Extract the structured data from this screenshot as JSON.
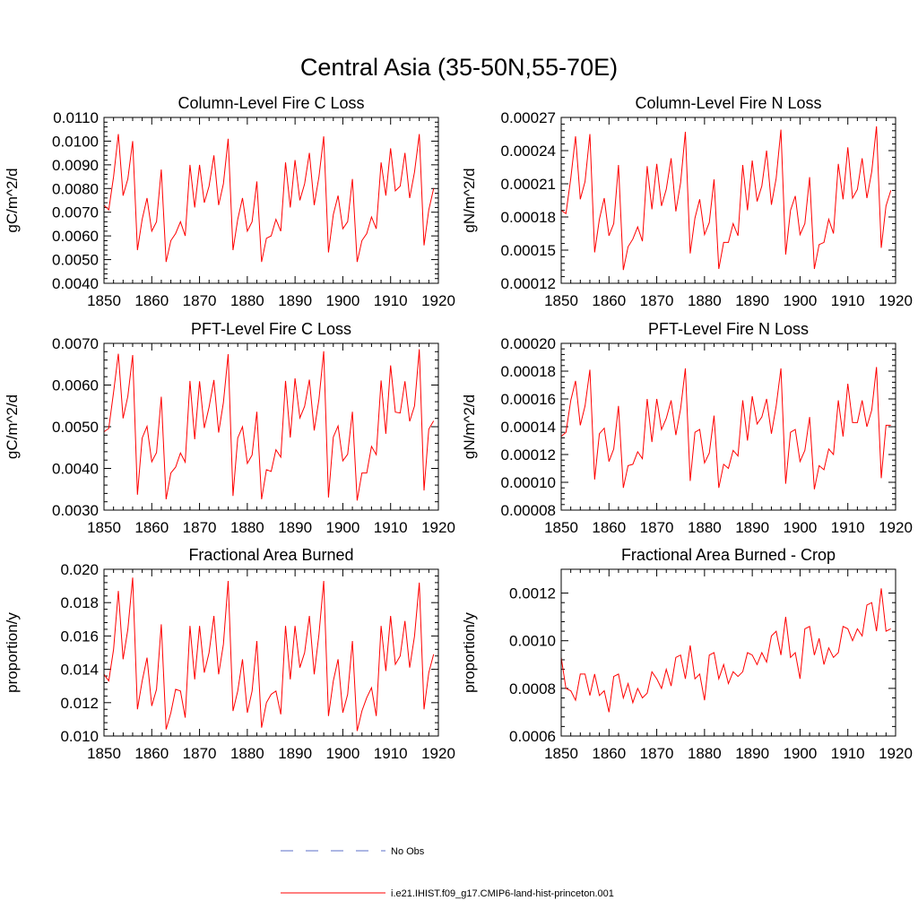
{
  "title": "Central Asia (35-50N,55-70E)",
  "chart_data": [
    {
      "type": "line",
      "title": "Column-Level Fire C Loss",
      "ylabel": "gC/m^2/d",
      "xlim": [
        1850,
        1920
      ],
      "ylim": [
        0.004,
        0.011
      ],
      "xticks": [
        "1850",
        "1860",
        "1870",
        "1880",
        "1890",
        "1900",
        "1910",
        "1920"
      ],
      "yticks": [
        "0.0040",
        "0.0050",
        "0.0060",
        "0.0070",
        "0.0080",
        "0.0090",
        "0.0100",
        "0.0110"
      ],
      "x_start": 1850,
      "series": [
        {
          "values": [
            0.0073,
            0.0071,
            0.0085,
            0.0103,
            0.0077,
            0.0084,
            0.01,
            0.0054,
            0.0067,
            0.0076,
            0.0062,
            0.0066,
            0.0088,
            0.0049,
            0.0058,
            0.0061,
            0.0066,
            0.006,
            0.009,
            0.0072,
            0.009,
            0.0074,
            0.0081,
            0.0094,
            0.0073,
            0.0082,
            0.0101,
            0.0054,
            0.0067,
            0.0076,
            0.0062,
            0.0066,
            0.0083,
            0.0049,
            0.0059,
            0.006,
            0.0067,
            0.0062,
            0.0091,
            0.0072,
            0.0092,
            0.0075,
            0.0082,
            0.0095,
            0.0073,
            0.0085,
            0.0102,
            0.0053,
            0.0069,
            0.0077,
            0.0063,
            0.0066,
            0.0084,
            0.0049,
            0.0058,
            0.0061,
            0.0068,
            0.0063,
            0.0091,
            0.0077,
            0.0097,
            0.0079,
            0.0081,
            0.0095,
            0.0076,
            0.0087,
            0.0103,
            0.0056,
            0.0071,
            0.008
          ]
        }
      ]
    },
    {
      "type": "line",
      "title": "Column-Level Fire N Loss",
      "ylabel": "gN/m^2/d",
      "xlim": [
        1850,
        1920
      ],
      "ylim": [
        0.00012,
        0.00027
      ],
      "xticks": [
        "1850",
        "1860",
        "1870",
        "1880",
        "1890",
        "1900",
        "1910",
        "1920"
      ],
      "yticks": [
        "0.00012",
        "0.00015",
        "0.00018",
        "0.00021",
        "0.00024",
        "0.00027"
      ],
      "x_start": 1850,
      "series": [
        {
          "values": [
            0.000186,
            0.000183,
            0.000215,
            0.000253,
            0.000196,
            0.000212,
            0.000255,
            0.000148,
            0.000178,
            0.000197,
            0.000163,
            0.000174,
            0.000227,
            0.000132,
            0.000153,
            0.00016,
            0.000171,
            0.000158,
            0.000226,
            0.000187,
            0.000228,
            0.00019,
            0.000205,
            0.000233,
            0.000185,
            0.000211,
            0.000257,
            0.000147,
            0.000179,
            0.000196,
            0.000164,
            0.000175,
            0.000214,
            0.000133,
            0.000157,
            0.000157,
            0.000174,
            0.000163,
            0.000227,
            0.000186,
            0.000231,
            0.000194,
            0.000208,
            0.00024,
            0.000191,
            0.000215,
            0.000259,
            0.000146,
            0.000186,
            0.000199,
            0.000164,
            0.000174,
            0.000216,
            0.000133,
            0.000155,
            0.000157,
            0.000178,
            0.000165,
            0.000228,
            0.000196,
            0.000243,
            0.000197,
            0.000205,
            0.000233,
            0.000197,
            0.000221,
            0.000262,
            0.000152,
            0.00019,
            0.000204
          ]
        }
      ]
    },
    {
      "type": "line",
      "title": "PFT-Level Fire C Loss",
      "ylabel": "gC/m^2/d",
      "xlim": [
        1850,
        1920
      ],
      "ylim": [
        0.003,
        0.007
      ],
      "xticks": [
        "1850",
        "1860",
        "1870",
        "1880",
        "1890",
        "1900",
        "1910",
        "1920"
      ],
      "yticks": [
        "0.0030",
        "0.0040",
        "0.0050",
        "0.0060",
        "0.0070"
      ],
      "x_start": 1850,
      "series": [
        {
          "values": [
            0.00488,
            0.00496,
            0.00583,
            0.00675,
            0.0052,
            0.00573,
            0.00672,
            0.00337,
            0.00473,
            0.00501,
            0.00416,
            0.00438,
            0.00572,
            0.00326,
            0.00389,
            0.00403,
            0.00437,
            0.00415,
            0.0061,
            0.0047,
            0.00609,
            0.00497,
            0.00547,
            0.00612,
            0.00486,
            0.00558,
            0.00674,
            0.00334,
            0.00473,
            0.005,
            0.00412,
            0.00432,
            0.00536,
            0.00326,
            0.00397,
            0.00393,
            0.00445,
            0.00427,
            0.0061,
            0.00474,
            0.00616,
            0.00521,
            0.00549,
            0.00613,
            0.00491,
            0.00566,
            0.00681,
            0.0033,
            0.00475,
            0.00502,
            0.00418,
            0.00434,
            0.00536,
            0.00323,
            0.00389,
            0.00389,
            0.00453,
            0.00433,
            0.00611,
            0.00483,
            0.00647,
            0.00535,
            0.00533,
            0.00609,
            0.00513,
            0.0055,
            0.00686,
            0.00347,
            0.00494,
            0.00514
          ]
        }
      ]
    },
    {
      "type": "line",
      "title": "PFT-Level Fire N Loss",
      "ylabel": "gN/m^2/d",
      "xlim": [
        1850,
        1920
      ],
      "ylim": [
        8e-05,
        0.0002
      ],
      "xticks": [
        "1850",
        "1860",
        "1870",
        "1880",
        "1890",
        "1900",
        "1910",
        "1920"
      ],
      "yticks": [
        "0.00008",
        "0.00010",
        "0.00012",
        "0.00014",
        "0.00016",
        "0.00018",
        "0.00020"
      ],
      "x_start": 1850,
      "series": [
        {
          "values": [
            0.000133,
            0.000136,
            0.000159,
            0.000173,
            0.000141,
            0.000155,
            0.000181,
            0.000102,
            0.000135,
            0.000139,
            0.000115,
            0.000124,
            0.000155,
            9.6e-05,
            0.000112,
            0.000113,
            0.000122,
            0.000117,
            0.00016,
            0.000129,
            0.00016,
            0.000138,
            0.000146,
            0.000159,
            0.000134,
            0.000153,
            0.000182,
            0.000101,
            0.000136,
            0.000138,
            0.000114,
            0.000121,
            0.000148,
            9.6e-05,
            0.000113,
            0.00011,
            0.000123,
            0.000119,
            0.000159,
            0.00013,
            0.000162,
            0.000142,
            0.000147,
            0.00016,
            0.000135,
            0.000155,
            0.000182,
            9.9e-05,
            0.000136,
            0.000138,
            0.000115,
            0.000123,
            0.000147,
            9.5e-05,
            0.000112,
            0.000109,
            0.000124,
            0.00012,
            0.000159,
            0.000133,
            0.000171,
            0.000143,
            0.000143,
            0.000159,
            0.00014,
            0.000152,
            0.000183,
            0.000103,
            0.000141,
            0.000141
          ]
        }
      ]
    },
    {
      "type": "line",
      "title": "Fractional Area Burned",
      "ylabel": "proportion/y",
      "xlim": [
        1850,
        1920
      ],
      "ylim": [
        0.01,
        0.02
      ],
      "xticks": [
        "1850",
        "1860",
        "1870",
        "1880",
        "1890",
        "1900",
        "1910",
        "1920"
      ],
      "yticks": [
        "0.010",
        "0.012",
        "0.014",
        "0.016",
        "0.018",
        "0.020"
      ],
      "x_start": 1850,
      "series": [
        {
          "values": [
            0.0137,
            0.0133,
            0.0152,
            0.0187,
            0.0146,
            0.0164,
            0.0195,
            0.0116,
            0.0133,
            0.0147,
            0.0118,
            0.0128,
            0.0167,
            0.0104,
            0.0114,
            0.0128,
            0.0127,
            0.0111,
            0.0166,
            0.0134,
            0.0166,
            0.0138,
            0.015,
            0.0172,
            0.0137,
            0.0155,
            0.0193,
            0.0115,
            0.0127,
            0.0146,
            0.0114,
            0.0127,
            0.0157,
            0.0105,
            0.012,
            0.0125,
            0.0127,
            0.0113,
            0.0166,
            0.0134,
            0.0166,
            0.0141,
            0.015,
            0.0172,
            0.0137,
            0.0161,
            0.0193,
            0.0112,
            0.0133,
            0.0146,
            0.0114,
            0.0125,
            0.0157,
            0.0103,
            0.0115,
            0.0123,
            0.0129,
            0.0112,
            0.0166,
            0.0139,
            0.0172,
            0.0143,
            0.0148,
            0.0169,
            0.0141,
            0.016,
            0.0192,
            0.0116,
            0.0138,
            0.0149
          ]
        }
      ]
    },
    {
      "type": "line",
      "title": "Fractional Area Burned - Crop",
      "ylabel": "proportion/y",
      "xlim": [
        1850,
        1920
      ],
      "ylim": [
        0.0006,
        0.0013
      ],
      "xticks": [
        "1850",
        "1860",
        "1870",
        "1880",
        "1890",
        "1900",
        "1910",
        "1920"
      ],
      "yticks": [
        "0.0006",
        "0.0008",
        "0.0010",
        "0.0012"
      ],
      "x_start": 1850,
      "series": [
        {
          "values": [
            0.00093,
            0.0008,
            0.00079,
            0.00075,
            0.00086,
            0.00086,
            0.00077,
            0.00086,
            0.00077,
            0.00079,
            0.0007,
            0.00085,
            0.00086,
            0.00076,
            0.00082,
            0.00074,
            0.0008,
            0.00076,
            0.00078,
            0.00087,
            0.00084,
            0.0008,
            0.00088,
            0.00081,
            0.00093,
            0.00094,
            0.00084,
            0.00098,
            0.00084,
            0.00086,
            0.00075,
            0.00094,
            0.00095,
            0.00084,
            0.0009,
            0.00082,
            0.00087,
            0.00085,
            0.00087,
            0.00095,
            0.00094,
            0.0009,
            0.00095,
            0.00091,
            0.00102,
            0.00104,
            0.00094,
            0.0011,
            0.00093,
            0.00095,
            0.00084,
            0.00105,
            0.00106,
            0.00094,
            0.00101,
            0.0009,
            0.00097,
            0.00093,
            0.00095,
            0.00106,
            0.00105,
            0.001,
            0.00105,
            0.00102,
            0.00115,
            0.00116,
            0.00104,
            0.00122,
            0.00104,
            0.00105
          ]
        }
      ]
    }
  ],
  "legend": [
    {
      "label": "No Obs",
      "style": "dashed",
      "color": "#5b6fc8"
    },
    {
      "label": "i.e21.IHIST.f09_g17.CMIP6-land-hist-princeton.001",
      "style": "solid",
      "color": "#ff0000"
    }
  ],
  "colors": {
    "series": "#ff0000",
    "obs": "#5b6fc8",
    "axis": "#000000"
  }
}
